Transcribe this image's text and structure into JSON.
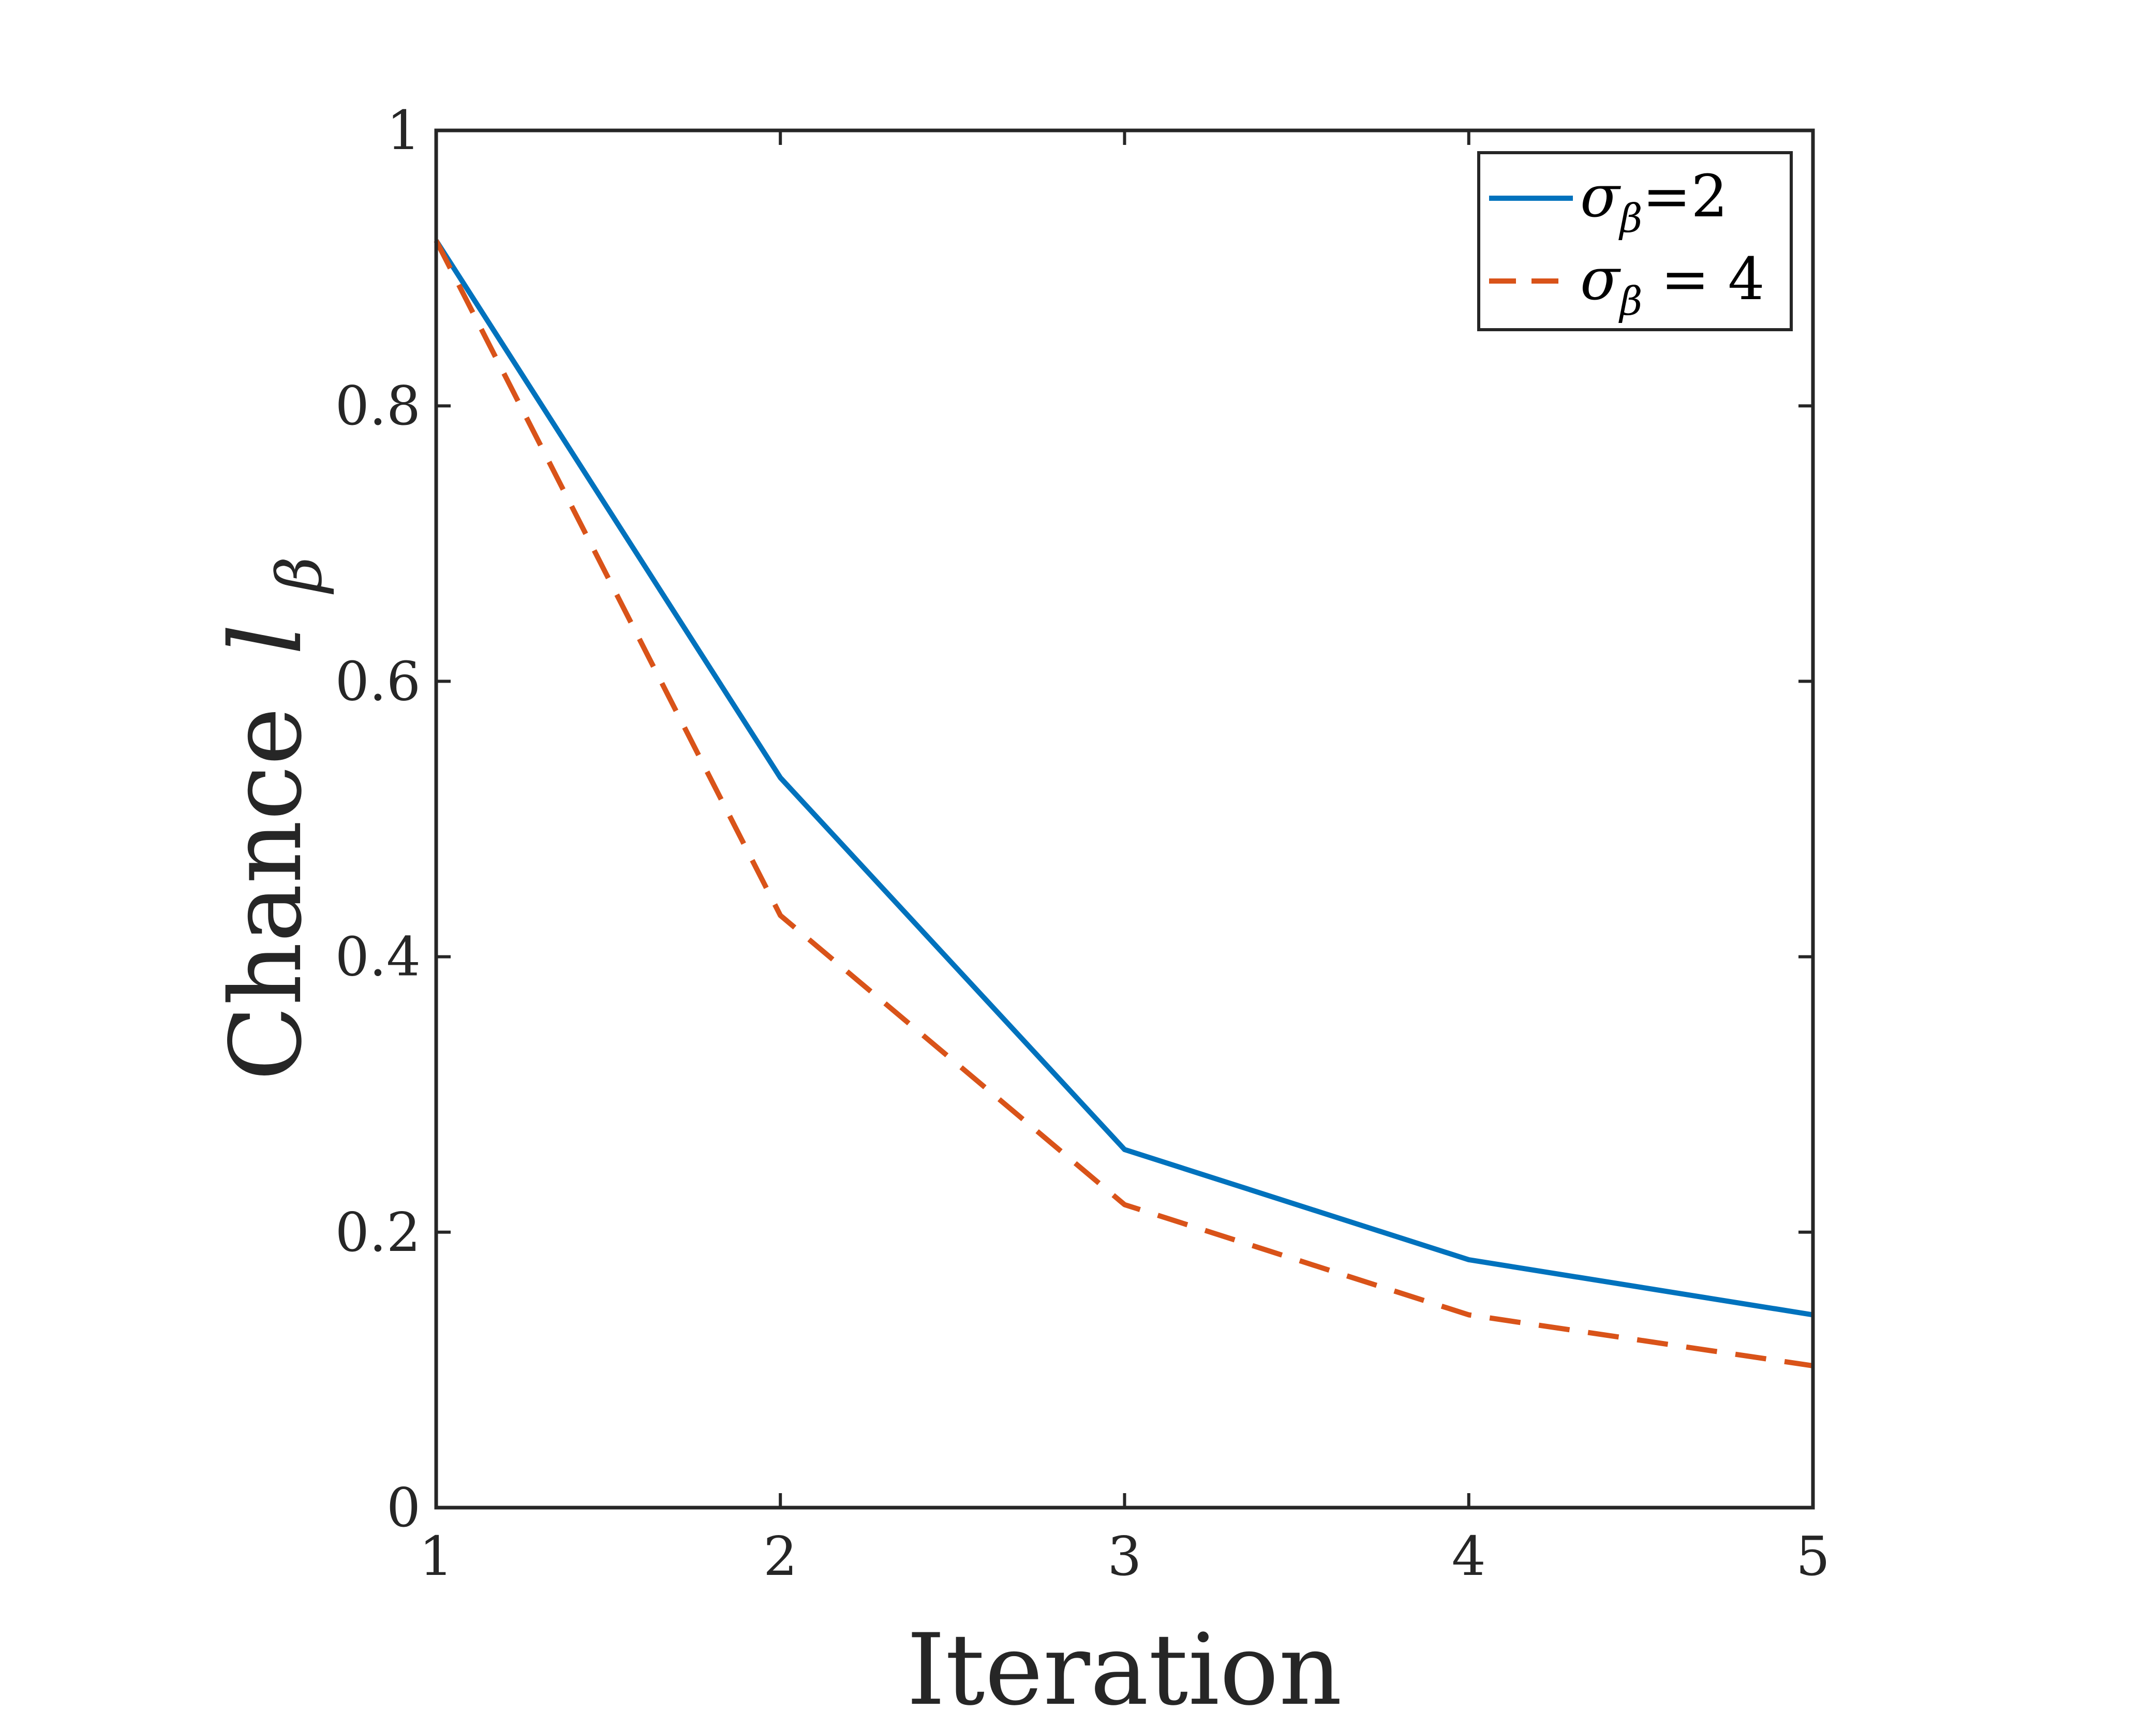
{
  "chart_data": {
    "type": "line",
    "title": "",
    "xlabel": "Iteration",
    "ylabel_prefix": "Chance",
    "ylabel_var": "l",
    "ylabel_sub": "β",
    "xlim": [
      1,
      5
    ],
    "ylim": [
      0,
      1
    ],
    "xticks": [
      1,
      2,
      3,
      4,
      5
    ],
    "yticks": [
      0,
      0.2,
      0.4,
      0.6,
      0.8,
      1
    ],
    "ytick_labels": [
      "0",
      "0.2",
      "0.4",
      "0.6",
      "0.8",
      "1"
    ],
    "xtick_labels": [
      "1",
      "2",
      "3",
      "4",
      "5"
    ],
    "grid": false,
    "legend_position": "top-right",
    "x": [
      1,
      2,
      3,
      4,
      5
    ],
    "series": [
      {
        "name": "σβ=2",
        "label_main": "σ",
        "label_sub": "β",
        "label_rest": "=2",
        "values": [
          0.92,
          0.53,
          0.26,
          0.18,
          0.14
        ],
        "color": "#0072BD",
        "dash": "solid"
      },
      {
        "name": "σβ = 4",
        "label_main": "σ",
        "label_sub": "β",
        "label_rest": " = 4",
        "values": [
          0.92,
          0.43,
          0.22,
          0.14,
          0.103
        ],
        "color": "#D95319",
        "dash": "dashed"
      }
    ]
  }
}
